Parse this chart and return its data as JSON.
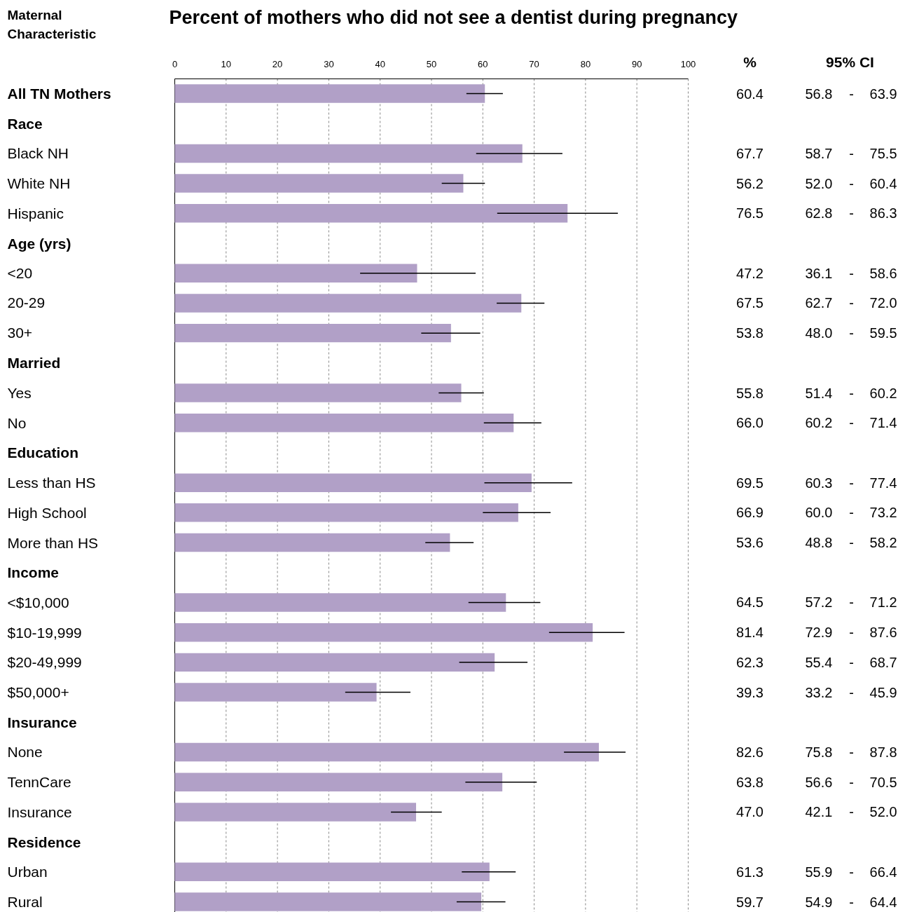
{
  "chart_data": {
    "type": "bar",
    "orientation": "horizontal",
    "title": "Percent of mothers who did not see a dentist during pregnancy",
    "ylabel": "Maternal Characteristic",
    "categories": [
      "All TN Mothers",
      "Race",
      "Black NH",
      "White NH",
      "Hispanic",
      "Age (yrs)",
      "<20",
      "20-29",
      "30+",
      "Married",
      "Yes",
      "No",
      "Education",
      "Less than HS",
      "High School",
      "More than HS",
      "Income",
      "<$10,000",
      "$10-19,999",
      "$20-49,999",
      "$50,000+",
      "Insurance",
      "None",
      "TennCare",
      "Insurance",
      "Residence",
      "Urban",
      "Rural"
    ],
    "values": [
      60.4,
      null,
      67.7,
      56.2,
      76.5,
      null,
      47.2,
      67.5,
      53.8,
      null,
      55.8,
      66.0,
      null,
      69.5,
      66.9,
      53.6,
      null,
      64.5,
      81.4,
      62.3,
      39.3,
      null,
      82.6,
      63.8,
      47.0,
      null,
      61.3,
      59.7
    ],
    "value_labels": [
      "60.4",
      null,
      "67.7",
      "56.2",
      "76.5",
      null,
      "47.2",
      "67.5",
      "53.8",
      null,
      "55.8",
      "66.0",
      null,
      "69.5",
      "66.9",
      "53.6",
      null,
      "64.5",
      "81.4",
      "62.3",
      "39.3",
      null,
      "82.6",
      "63.8",
      "47.0",
      null,
      "61.3",
      "59.7"
    ],
    "errors": [
      [
        56.8,
        63.9
      ],
      null,
      [
        58.7,
        75.5
      ],
      [
        52.0,
        60.4
      ],
      [
        62.8,
        86.3
      ],
      null,
      [
        36.1,
        58.6
      ],
      [
        62.7,
        72.0
      ],
      [
        48.0,
        59.5
      ],
      null,
      [
        51.4,
        60.2
      ],
      [
        60.2,
        71.4
      ],
      null,
      [
        60.3,
        77.4
      ],
      [
        60.0,
        73.2
      ],
      [
        48.8,
        58.2
      ],
      null,
      [
        57.2,
        71.2
      ],
      [
        72.9,
        87.6
      ],
      [
        55.4,
        68.7
      ],
      [
        33.2,
        45.9
      ],
      null,
      [
        75.8,
        87.8
      ],
      [
        56.6,
        70.5
      ],
      [
        42.1,
        52.0
      ],
      null,
      [
        55.9,
        66.4
      ],
      [
        54.9,
        64.4
      ]
    ],
    "color": "#b1a0c7",
    "annotations": [
      "%",
      "95% CI",
      "56.8 - 63.9",
      "58.7 - 75.5",
      "52.0 - 60.4",
      "62.8 - 86.3",
      "36.1 - 58.6",
      "62.7 - 72.0",
      "48.0 - 59.5",
      "51.4 - 60.2",
      "60.2 - 71.4",
      "60.3 - 77.4",
      "60.0 - 73.2",
      "48.8 - 58.2",
      "57.2 - 71.2",
      "72.9 - 87.6",
      "55.4 - 68.7",
      "33.2 - 45.9",
      "75.8 - 87.8",
      "56.6 - 70.5",
      "42.1 - 52.0",
      "55.9 - 66.4",
      "54.9 - 64.4"
    ],
    "xlim": [
      0,
      100
    ],
    "xticks": [
      0,
      10,
      20,
      30,
      40,
      50,
      60,
      70,
      80,
      90,
      100
    ],
    "grid": "x"
  }
}
